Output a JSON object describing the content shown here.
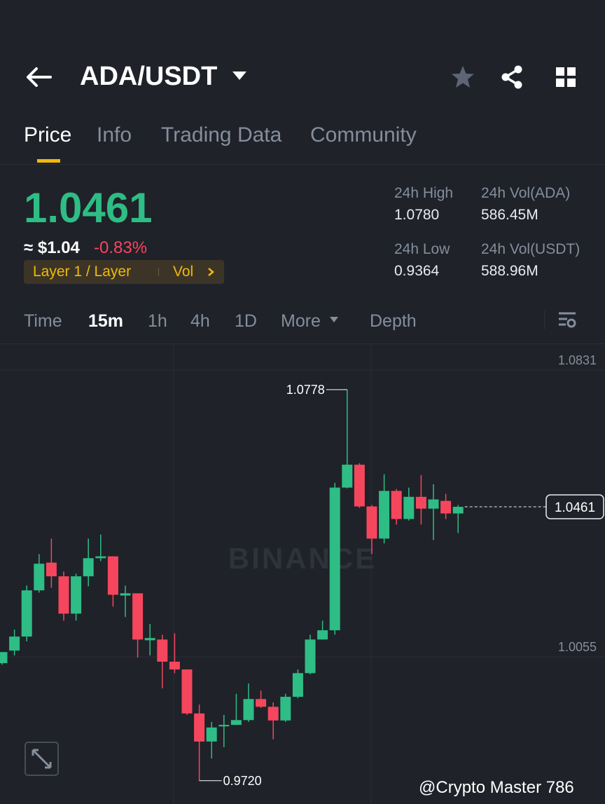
{
  "header": {
    "pair": "ADA/USDT"
  },
  "tabs": [
    "Price",
    "Info",
    "Trading Data",
    "Community"
  ],
  "ticker": {
    "price": "1.0461",
    "approx": "≈ $1.04",
    "change": "-0.83%",
    "tag": "Layer 1 / Layer",
    "tag_link": "Vol",
    "stats": [
      {
        "label": "24h High",
        "value": "1.0780"
      },
      {
        "label": "24h Vol(ADA)",
        "value": "586.45M"
      },
      {
        "label": "24h Low",
        "value": "0.9364"
      },
      {
        "label": "24h Vol(USDT)",
        "value": "588.96M"
      }
    ]
  },
  "intervals": [
    "Time",
    "15m",
    "1h",
    "4h",
    "1D",
    "More",
    "Depth"
  ],
  "chart_data": {
    "type": "candlestick",
    "up_color": "#2ebd85",
    "down_color": "#f6465d",
    "ylim": [
      0.9657,
      1.0901
    ],
    "yticks": [
      1.0831,
      1.0055
    ],
    "watermark": "BINANCE",
    "max_marker": 1.0778,
    "min_marker": {
      "value": 0.972,
      "label": "0.9720"
    },
    "last_price": 1.0461,
    "open": [
      1.0038,
      1.0072,
      1.011,
      1.0235,
      1.031,
      1.0273,
      1.0172,
      1.0273,
      1.0322,
      1.0327,
      1.0221,
      1.0227,
      1.01,
      1.0102,
      1.0042,
      1.0021,
      0.9902,
      0.9826,
      0.9867,
      0.9871,
      0.9884,
      0.9941,
      0.992,
      0.9883,
      0.9947,
      1.0011,
      1.0102,
      1.0127,
      1.0513,
      1.0575,
      1.0462,
      1.0375,
      1.0504,
      1.0428,
      1.0488,
      1.0456,
      1.0477,
      1.0443
    ],
    "high": [
      1.0068,
      1.0129,
      1.0248,
      1.0333,
      1.0375,
      1.0286,
      1.028,
      1.0375,
      1.0386,
      1.0327,
      1.0248,
      1.0227,
      1.0144,
      1.0115,
      1.0119,
      1.0021,
      0.9926,
      0.9879,
      0.9898,
      0.9955,
      0.9983,
      0.9964,
      0.9932,
      0.9955,
      1.0021,
      1.0115,
      1.0153,
      1.0526,
      1.0778,
      1.0579,
      1.0466,
      1.0549,
      1.0509,
      1.0513,
      1.0547,
      1.0522,
      1.0496,
      1.0466
    ],
    "low": [
      1.0034,
      1.0059,
      1.0097,
      1.0229,
      1.0242,
      1.0153,
      1.0153,
      1.0246,
      1.0314,
      1.0191,
      1.0163,
      1.0053,
      1.0059,
      0.997,
      1.0011,
      0.9898,
      0.972,
      0.978,
      0.9811,
      0.9871,
      0.9879,
      0.9917,
      0.9832,
      0.9879,
      0.9943,
      1.0008,
      1.0102,
      1.0115,
      1.0511,
      1.0458,
      1.0333,
      1.0362,
      1.0413,
      1.0424,
      1.0413,
      1.0371,
      1.0428,
      1.039
    ],
    "close": [
      1.0068,
      1.011,
      1.0235,
      1.0307,
      1.0273,
      1.0172,
      1.0273,
      1.0322,
      1.0327,
      1.0223,
      1.0227,
      1.0102,
      1.0106,
      1.0042,
      1.0021,
      0.9902,
      0.9826,
      0.9864,
      0.9871,
      0.9884,
      0.9941,
      0.992,
      0.9883,
      0.9947,
      1.0011,
      1.0102,
      1.0127,
      1.0513,
      1.0575,
      1.0462,
      1.0375,
      1.0504,
      1.0428,
      1.0488,
      1.0456,
      1.0481,
      1.0443,
      1.0461
    ]
  },
  "footer": {
    "credit": "@Crypto Master 786"
  }
}
